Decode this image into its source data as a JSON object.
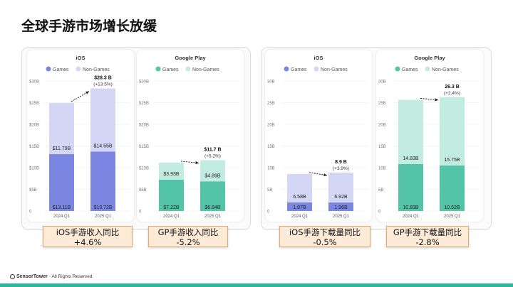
{
  "title": "全球手游市场增长放缓",
  "footer": {
    "brand": "SensorTower",
    "rights": "· All Rights Reserved"
  },
  "colors": {
    "ios_games": "#7b86e3",
    "ios_nongames": "#d3d7f5",
    "gp_games": "#54c4a8",
    "gp_nongames": "#c3ece0"
  },
  "chart_data": [
    {
      "type": "bar",
      "stacked": true,
      "title": "iOS",
      "categories": [
        "2024 Q1",
        "2025 Q1"
      ],
      "series": [
        {
          "name": "Games",
          "values": [
            13.11,
            13.72
          ],
          "labels": [
            "$13.11B",
            "$13.72B"
          ]
        },
        {
          "name": "Non-Games",
          "values": [
            11.79,
            14.55
          ],
          "labels": [
            "$11.79B",
            "$14.55B"
          ]
        }
      ],
      "ylim": [
        0,
        30
      ],
      "yticks": [
        0,
        5,
        10,
        15,
        20,
        25,
        30
      ],
      "ytick_labels": [
        "0",
        "$5B",
        "$10B",
        "$15B",
        "$20B",
        "$25B",
        "$30B"
      ],
      "total_label": "$28.3 B",
      "change_label": "(+13.5%)",
      "callout": [
        "iOS手游收入同比",
        "+4.6%"
      ]
    },
    {
      "type": "bar",
      "stacked": true,
      "title": "Google Play",
      "categories": [
        "2024 Q1",
        "2025 Q1"
      ],
      "series": [
        {
          "name": "Games",
          "values": [
            7.22,
            6.84
          ],
          "labels": [
            "$7.22B",
            "$6.84B"
          ]
        },
        {
          "name": "Non-Games",
          "values": [
            3.93,
            4.89
          ],
          "labels": [
            "$3.93B",
            "$4.89B"
          ]
        }
      ],
      "ylim": [
        0,
        30
      ],
      "yticks": [
        0,
        5,
        10,
        15,
        20,
        25,
        30
      ],
      "ytick_labels": [
        "0",
        "$5B",
        "$10B",
        "$15B",
        "$20B",
        "$25B",
        "$30B"
      ],
      "total_label": "$11.7 B",
      "change_label": "(+5.2%)",
      "callout": [
        "GP手游收入同比",
        "-5.2%"
      ]
    },
    {
      "type": "bar",
      "stacked": true,
      "title": "iOS",
      "categories": [
        "2024 Q1",
        "2025 Q1"
      ],
      "series": [
        {
          "name": "Games",
          "values": [
            1.97,
            1.96
          ],
          "labels": [
            "1.97B",
            "1.96B"
          ]
        },
        {
          "name": "Non-Games",
          "values": [
            6.58,
            6.92
          ],
          "labels": [
            "6.58B",
            "6.92B"
          ]
        }
      ],
      "ylim": [
        0,
        30
      ],
      "yticks": [
        0,
        5,
        10,
        15,
        20,
        25,
        30
      ],
      "ytick_labels": [
        "0",
        "5B",
        "10B",
        "15B",
        "20B",
        "25B",
        "30B"
      ],
      "total_label": "8.9 B",
      "change_label": "(+3.9%)",
      "callout": [
        "iOS手游下载量同比",
        "-0.5%"
      ]
    },
    {
      "type": "bar",
      "stacked": true,
      "title": "Google Play",
      "categories": [
        "2024 Q1",
        "2025 Q1"
      ],
      "series": [
        {
          "name": "Games",
          "values": [
            10.83,
            10.52
          ],
          "labels": [
            "10.83B",
            "10.52B"
          ]
        },
        {
          "name": "Non-Games",
          "values": [
            14.83,
            15.75
          ],
          "labels": [
            "14.83B",
            "15.75B"
          ]
        }
      ],
      "ylim": [
        0,
        30
      ],
      "yticks": [
        0,
        5,
        10,
        15,
        20,
        25,
        30
      ],
      "ytick_labels": [
        "0",
        "5B",
        "10B",
        "15B",
        "20B",
        "25B",
        "30B"
      ],
      "total_label": "26.3 B",
      "change_label": "(+2.4%)",
      "callout": [
        "GP手游下载量同比",
        "-2.8%"
      ]
    }
  ]
}
